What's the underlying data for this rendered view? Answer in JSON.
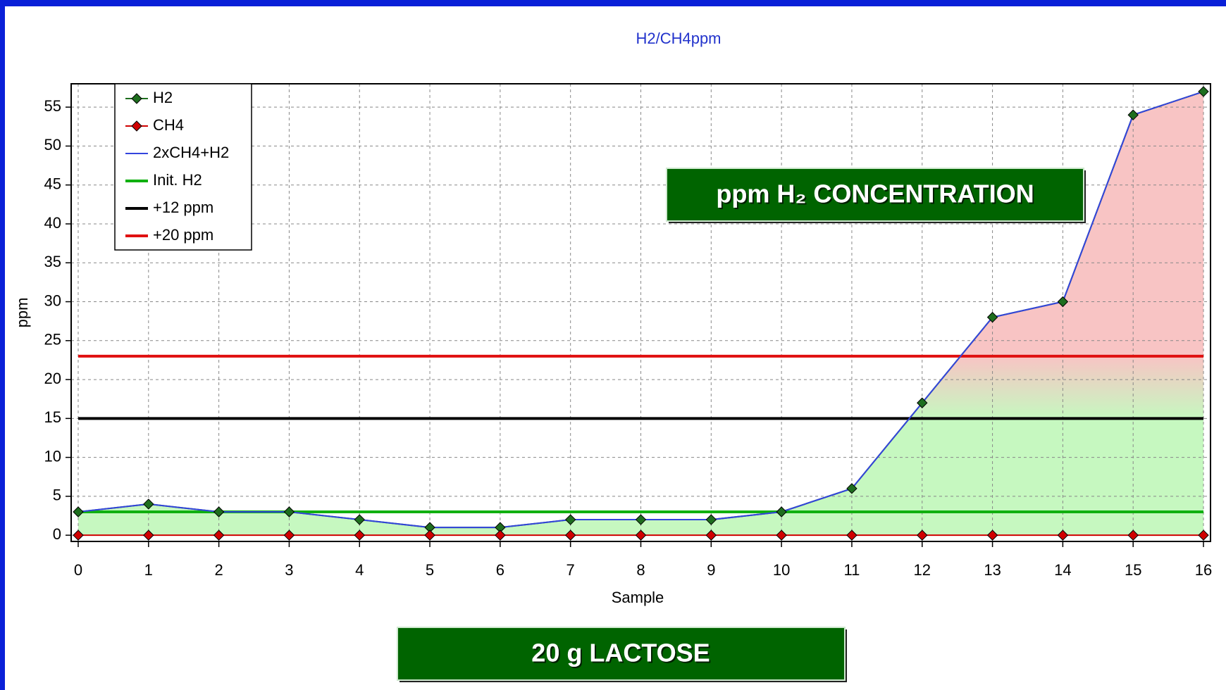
{
  "chart_data": {
    "type": "line",
    "title": "H2/CH4ppm",
    "xlabel": "Sample",
    "ylabel": "ppm",
    "x": [
      0,
      1,
      2,
      3,
      4,
      5,
      6,
      7,
      8,
      9,
      10,
      11,
      12,
      13,
      14,
      15,
      16
    ],
    "series": [
      {
        "name": "H2",
        "color": "#1e6e1e",
        "marker": true,
        "values": [
          3,
          4,
          3,
          3,
          2,
          1,
          1,
          2,
          2,
          2,
          3,
          6,
          17,
          28,
          30,
          54,
          57
        ]
      },
      {
        "name": "CH4",
        "color": "#d00000",
        "marker": true,
        "values": [
          0,
          0,
          0,
          0,
          0,
          0,
          0,
          0,
          0,
          0,
          0,
          0,
          0,
          0,
          0,
          0,
          0
        ]
      },
      {
        "name": "2xCH4+H2",
        "color": "#3344dd",
        "fill": true,
        "values": [
          3,
          4,
          3,
          3,
          2,
          1,
          1,
          2,
          2,
          2,
          3,
          6,
          17,
          28,
          30,
          54,
          57
        ]
      },
      {
        "name": "Init. H2",
        "color": "#10b010",
        "values": [
          3,
          3,
          3,
          3,
          3,
          3,
          3,
          3,
          3,
          3,
          3,
          3,
          3,
          3,
          3,
          3,
          3
        ]
      },
      {
        "name": "+12 ppm",
        "color": "#000000",
        "values": [
          15,
          15,
          15,
          15,
          15,
          15,
          15,
          15,
          15,
          15,
          15,
          15,
          15,
          15,
          15,
          15,
          15
        ]
      },
      {
        "name": "+20 ppm",
        "color": "#e01010",
        "values": [
          23,
          23,
          23,
          23,
          23,
          23,
          23,
          23,
          23,
          23,
          23,
          23,
          23,
          23,
          23,
          23,
          23
        ]
      }
    ],
    "xlim": [
      -0.1,
      16.1
    ],
    "xticks": [
      0,
      1,
      2,
      3,
      4,
      5,
      6,
      7,
      8,
      9,
      10,
      11,
      12,
      13,
      14,
      15,
      16
    ],
    "ylim": [
      -0.8,
      58
    ],
    "yticks": [
      0,
      5,
      10,
      15,
      20,
      25,
      30,
      35,
      40,
      45,
      50,
      55
    ],
    "grid": true,
    "legend": "top-left",
    "annotations": [
      "ppm H₂ CONCENTRATION",
      "20 g LACTOSE"
    ]
  }
}
